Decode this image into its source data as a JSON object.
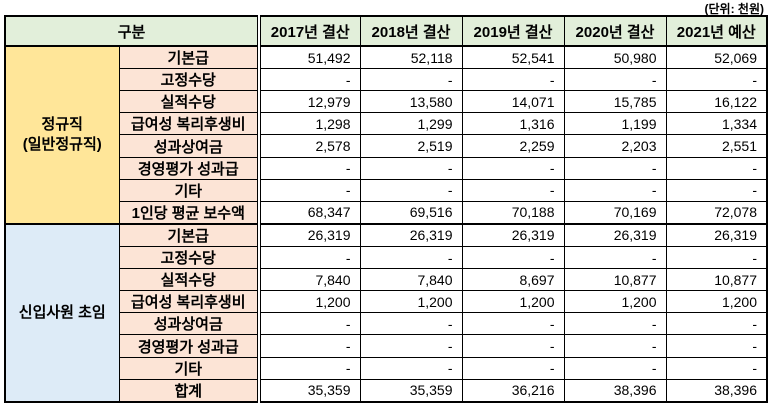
{
  "unit_label": "(단위: 천원)",
  "table": {
    "corner_header": "구분",
    "year_headers": [
      "2017년 결산",
      "2018년 결산",
      "2019년 결산",
      "2020년 결산",
      "2021년 예산"
    ],
    "groups": [
      {
        "label": "정규직",
        "label_sub": "(일반정규직)",
        "rows": [
          {
            "label": "기본급",
            "values": [
              "51,492",
              "52,118",
              "52,541",
              "50,980",
              "52,069"
            ]
          },
          {
            "label": "고정수당",
            "values": [
              "-",
              "-",
              "-",
              "-",
              "-"
            ]
          },
          {
            "label": "실적수당",
            "values": [
              "12,979",
              "13,580",
              "14,071",
              "15,785",
              "16,122"
            ]
          },
          {
            "label": "급여성 복리후생비",
            "values": [
              "1,298",
              "1,299",
              "1,316",
              "1,199",
              "1,334"
            ]
          },
          {
            "label": "성과상여금",
            "values": [
              "2,578",
              "2,519",
              "2,259",
              "2,203",
              "2,551"
            ]
          },
          {
            "label": "경영평가 성과급",
            "values": [
              "-",
              "-",
              "-",
              "-",
              "-"
            ]
          },
          {
            "label": "기타",
            "values": [
              "-",
              "-",
              "-",
              "-",
              "-"
            ]
          },
          {
            "label": "1인당 평균 보수액",
            "values": [
              "68,347",
              "69,516",
              "70,188",
              "70,169",
              "72,078"
            ]
          }
        ]
      },
      {
        "label": "신입사원 초임",
        "label_sub": "",
        "rows": [
          {
            "label": "기본급",
            "values": [
              "26,319",
              "26,319",
              "26,319",
              "26,319",
              "26,319"
            ]
          },
          {
            "label": "고정수당",
            "values": [
              "-",
              "-",
              "-",
              "-",
              "-"
            ]
          },
          {
            "label": "실적수당",
            "values": [
              "7,840",
              "7,840",
              "8,697",
              "10,877",
              "10,877"
            ]
          },
          {
            "label": "급여성 복리후생비",
            "values": [
              "1,200",
              "1,200",
              "1,200",
              "1,200",
              "1,200"
            ]
          },
          {
            "label": "성과상여금",
            "values": [
              "-",
              "-",
              "-",
              "-",
              "-"
            ]
          },
          {
            "label": "경영평가 성과급",
            "values": [
              "-",
              "-",
              "-",
              "-",
              "-"
            ]
          },
          {
            "label": "기타",
            "values": [
              "-",
              "-",
              "-",
              "-",
              "-"
            ]
          },
          {
            "label": "합계",
            "values": [
              "35,359",
              "35,359",
              "36,216",
              "38,396",
              "38,396"
            ]
          }
        ]
      }
    ]
  },
  "colors": {
    "header_bg": "#E2EFDA",
    "group_regular_bg": "#FFE699",
    "group_newhire_bg": "#DDEBF7",
    "row_label_bg": "#FCE4D6",
    "border": "#000000",
    "text": "#000000"
  }
}
